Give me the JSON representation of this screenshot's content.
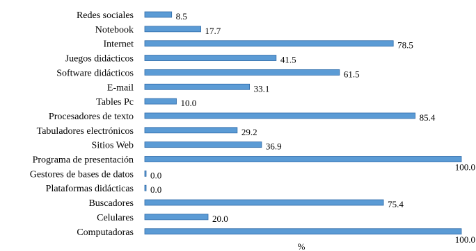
{
  "chart_data": {
    "type": "bar",
    "orientation": "horizontal",
    "categories": [
      "Redes sociales",
      "Notebook",
      "Internet",
      "Juegos didácticos",
      "Software didácticos",
      "E-mail",
      "Tables Pc",
      "Procesadores de texto",
      "Tabuladores electrónicos",
      "Sitios Web",
      "Programa de presentación",
      "Gestores de bases de datos",
      "Plataformas didácticas",
      "Buscadores",
      "Celulares",
      "Computadoras"
    ],
    "values": [
      8.5,
      17.7,
      78.5,
      41.5,
      61.5,
      33.1,
      10.0,
      85.4,
      29.2,
      36.9,
      100.0,
      0.0,
      0.0,
      75.4,
      20.0,
      100.0
    ],
    "value_labels": [
      "8.5",
      "17.7",
      "78.5",
      "41.5",
      "61.5",
      "33.1",
      "10.0",
      "85.4",
      "29.2",
      "36.9",
      "100.0",
      "0.0",
      "0.0",
      "75.4",
      "20.0",
      "100.0"
    ],
    "xlabel": "%",
    "xlim": [
      0,
      100
    ],
    "grid": false,
    "bar_color": "#5b9bd5",
    "bar_edge_color": "#2e6aa8"
  }
}
